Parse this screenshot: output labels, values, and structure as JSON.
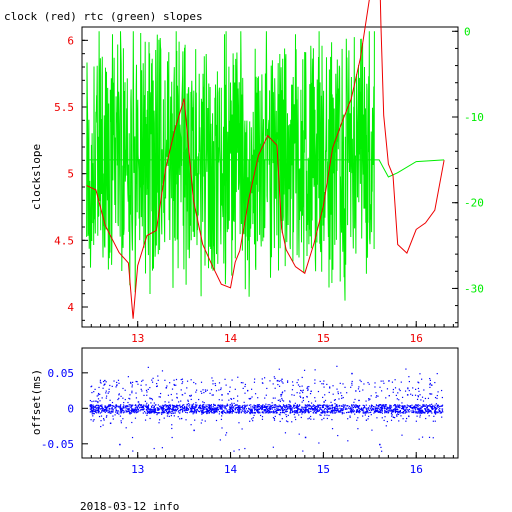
{
  "title": "clock (red) rtc (green) slopes",
  "footer": "2018-03-12 info",
  "colors": {
    "red": "#ee0000",
    "green": "#00ee00",
    "blue": "#0000ff",
    "axis": "#000000"
  },
  "chart_data": [
    {
      "type": "line",
      "ylabel": "clockslope",
      "y2label": "",
      "xlim": [
        12.4,
        16.45
      ],
      "ylim": [
        3.85,
        6.1
      ],
      "y2lim": [
        -34.5,
        0.5
      ],
      "xticks": [
        "13",
        "14",
        "15",
        "16"
      ],
      "yticks": [
        "4",
        "4.5",
        "5",
        "5.5",
        "6"
      ],
      "y2ticks": [
        "0",
        "-10",
        "-20",
        "-30"
      ],
      "series": [
        {
          "name": "clock",
          "axis": "left",
          "color": "red",
          "x": [
            12.45,
            12.55,
            12.65,
            12.8,
            12.9,
            12.95,
            13.0,
            13.1,
            13.2,
            13.3,
            13.4,
            13.5,
            13.55,
            13.6,
            13.7,
            13.8,
            13.9,
            14.0,
            14.05,
            14.1,
            14.2,
            14.3,
            14.4,
            14.5,
            14.55,
            14.6,
            14.7,
            14.8,
            14.9,
            15.0,
            15.1,
            15.2,
            15.3,
            15.4,
            15.5,
            15.6,
            15.62,
            15.65,
            15.7,
            15.75,
            15.8,
            15.9,
            16.0,
            16.1,
            16.2,
            16.3
          ],
          "y": [
            4.95,
            4.9,
            4.6,
            4.4,
            4.3,
            3.95,
            4.3,
            4.5,
            4.55,
            5.0,
            5.3,
            5.6,
            5.2,
            4.8,
            4.5,
            4.3,
            4.2,
            4.15,
            4.3,
            4.4,
            4.8,
            5.1,
            5.25,
            5.2,
            4.6,
            4.4,
            4.3,
            4.25,
            4.5,
            4.8,
            5.2,
            5.35,
            5.6,
            5.9,
            6.3,
            6.7,
            6.1,
            5.4,
            5.1,
            4.95,
            4.5,
            4.4,
            4.55,
            4.65,
            4.75,
            5.1
          ]
        },
        {
          "name": "rtc",
          "axis": "right",
          "color": "green",
          "x": [
            12.45,
            15.6,
            15.7,
            15.8,
            16.0,
            16.3
          ],
          "y": [
            -15,
            -15,
            -17,
            -16.5,
            -15.2,
            -15
          ]
        }
      ]
    },
    {
      "type": "scatter",
      "ylabel": "offset(ms)",
      "xlim": [
        12.4,
        16.45
      ],
      "ylim": [
        -0.07,
        0.085
      ],
      "xticks": [
        "13",
        "14",
        "15",
        "16"
      ],
      "yticks": [
        "0.05",
        "0",
        "-0.05"
      ],
      "series": [
        {
          "name": "offset",
          "color": "blue",
          "x": [
            12.5,
            12.7,
            12.8,
            13.0,
            13.3,
            13.6,
            13.9,
            14.2,
            14.5,
            14.8,
            15.0,
            15.3,
            15.6,
            15.9,
            16.2
          ],
          "y": [
            0.002,
            -0.02,
            -0.05,
            0.01,
            0.03,
            -0.03,
            0.02,
            0.0,
            0.04,
            -0.04,
            0.01,
            0.05,
            -0.05,
            0.02,
            0.0
          ]
        }
      ]
    }
  ]
}
